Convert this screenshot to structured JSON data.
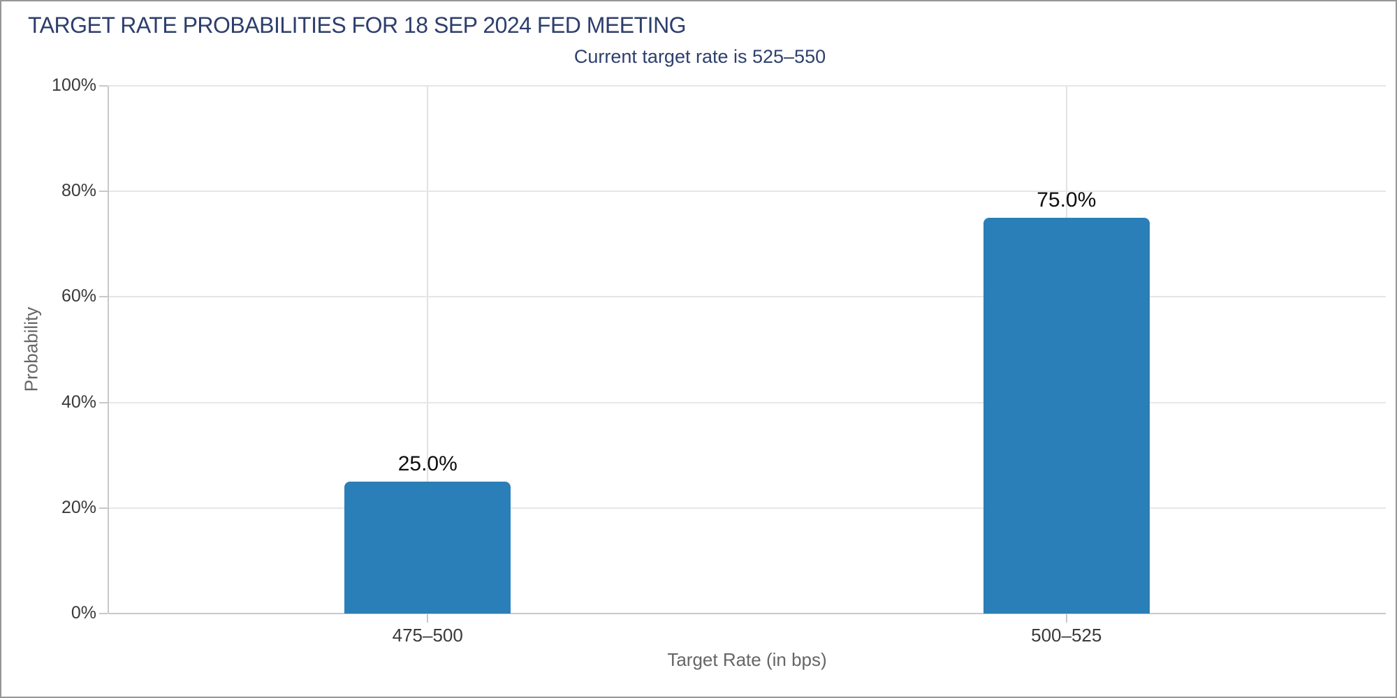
{
  "frame": {
    "background": "#ffffff",
    "border_color": "#969696"
  },
  "chart_data": {
    "type": "bar",
    "title": "TARGET RATE PROBABILITIES FOR 18 SEP 2024 FED MEETING",
    "subtitle": "Current target rate is 525–550",
    "categories": [
      "475–500",
      "500–525"
    ],
    "values": [
      25.0,
      75.0
    ],
    "value_labels": [
      "25.0%",
      "75.0%"
    ],
    "xlabel": "Target Rate (in bps)",
    "ylabel": "Probability",
    "ylim": [
      0,
      100
    ],
    "y_tick_step": 20,
    "y_tick_labels": [
      "0%",
      "20%",
      "40%",
      "60%",
      "80%",
      "100%"
    ],
    "grid": true,
    "legend": false,
    "colors": {
      "bar": "#2a7fb8",
      "title_text": "#2d3e6d",
      "subtitle_text": "#2e3f6e",
      "axis_line": "#c8c8c8",
      "gridline": "#e6e6e6",
      "tick_label_text": "#3a3a3a",
      "axis_title_text": "#666666",
      "value_label_text": "#0d0d0d"
    }
  }
}
